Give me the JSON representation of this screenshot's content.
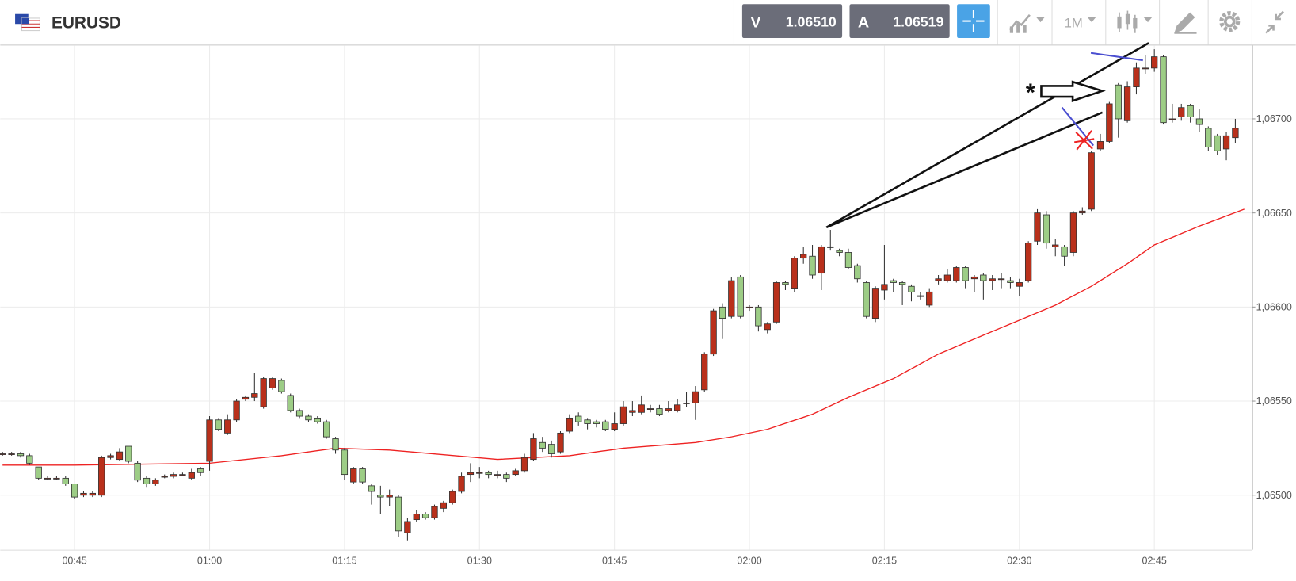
{
  "header": {
    "symbol": "EURUSD",
    "sell_label": "V",
    "sell_price": "1.06510",
    "buy_label": "A",
    "buy_price": "1.06519",
    "timeframe": "1M"
  },
  "chart_data": {
    "type": "candlestick",
    "annotation": "*",
    "up_color": "#b9301b",
    "down_color": "#9dcd86",
    "grid": true,
    "xlim": [
      36.74,
      175.85
    ],
    "xticks": [
      {
        "value": 45,
        "label": "00:45"
      },
      {
        "value": 60,
        "label": "01:00"
      },
      {
        "value": 75,
        "label": "01:15"
      },
      {
        "value": 90,
        "label": "01:30"
      },
      {
        "value": 105,
        "label": "01:45"
      },
      {
        "value": 120,
        "label": "02:00"
      },
      {
        "value": 135,
        "label": "02:15"
      },
      {
        "value": 150,
        "label": "02:30"
      },
      {
        "value": 165,
        "label": "02:45"
      }
    ],
    "ylim": [
      1.06471,
      1.06739
    ],
    "yticks": [
      {
        "value": 1.065,
        "label": "1,06500"
      },
      {
        "value": 1.0655,
        "label": "1,06550"
      },
      {
        "value": 1.066,
        "label": "1,06600"
      },
      {
        "value": 1.0665,
        "label": "1,06650"
      },
      {
        "value": 1.067,
        "label": "1,06700"
      }
    ],
    "x": [
      37,
      38,
      39,
      40,
      41,
      42,
      43,
      44,
      45,
      46,
      47,
      48,
      49,
      50,
      51,
      52,
      53,
      54,
      55,
      56,
      57,
      58,
      59,
      60,
      61,
      62,
      63,
      64,
      65,
      66,
      67,
      68,
      69,
      70,
      71,
      72,
      73,
      74,
      75,
      76,
      77,
      78,
      79,
      80,
      81,
      82,
      83,
      84,
      85,
      86,
      87,
      88,
      89,
      90,
      91,
      92,
      93,
      94,
      95,
      96,
      97,
      98,
      99,
      100,
      101,
      102,
      103,
      104,
      105,
      106,
      107,
      108,
      109,
      110,
      111,
      112,
      113,
      114,
      115,
      116,
      117,
      118,
      119,
      120,
      121,
      122,
      123,
      124,
      125,
      126,
      127,
      128,
      129,
      130,
      131,
      132,
      133,
      134,
      135,
      136,
      137,
      138,
      139,
      140,
      141,
      142,
      143,
      144,
      145,
      146,
      147,
      148,
      149,
      150,
      151,
      152,
      153,
      154,
      155,
      156,
      157,
      158,
      159,
      160,
      161,
      162,
      163,
      164,
      165,
      166,
      167,
      168,
      169,
      170,
      171,
      172,
      173,
      174
    ],
    "open": [
      1.06522,
      1.06522,
      1.06522,
      1.06521,
      1.06515,
      1.06509,
      1.06509,
      1.06509,
      1.06506,
      1.065,
      1.065,
      1.065,
      1.0652,
      1.06519,
      1.06526,
      1.06517,
      1.06509,
      1.06506,
      1.0651,
      1.0651,
      1.06511,
      1.06509,
      1.06514,
      1.06518,
      1.0654,
      1.06533,
      1.0654,
      1.06551,
      1.06552,
      1.06547,
      1.06557,
      1.06561,
      1.06553,
      1.06545,
      1.06542,
      1.06541,
      1.06539,
      1.0653,
      1.06524,
      1.06507,
      1.06514,
      1.06505,
      1.065,
      1.06499,
      1.06499,
      1.0648,
      1.06487,
      1.0649,
      1.06488,
      1.06493,
      1.06496,
      1.06502,
      1.06511,
      1.06512,
      1.06512,
      1.06511,
      1.06511,
      1.06511,
      1.06513,
      1.06519,
      1.06528,
      1.06527,
      1.06523,
      1.06534,
      1.06542,
      1.0654,
      1.06539,
      1.06539,
      1.06535,
      1.06538,
      1.06544,
      1.06544,
      1.06546,
      1.06546,
      1.06545,
      1.06545,
      1.06549,
      1.06549,
      1.06556,
      1.06575,
      1.066,
      1.06595,
      1.06616,
      1.066,
      1.066,
      1.06588,
      1.06592,
      1.06613,
      1.0661,
      1.06626,
      1.06627,
      1.06618,
      1.06632,
      1.0663,
      1.06629,
      1.06622,
      1.06613,
      1.06594,
      1.06609,
      1.06614,
      1.06613,
      1.06611,
      1.06606,
      1.06601,
      1.06614,
      1.06614,
      1.06614,
      1.06621,
      1.06615,
      1.06617,
      1.06614,
      1.06615,
      1.06614,
      1.06611,
      1.06614,
      1.06635,
      1.06649,
      1.06632,
      1.06632,
      1.06629,
      1.0665,
      1.06652,
      1.06684,
      1.06688,
      1.06718,
      1.06699,
      1.06717,
      1.06727,
      1.06727,
      1.06733,
      1.067,
      1.06701,
      1.06707,
      1.067,
      1.06695,
      1.06691,
      1.06684,
      1.0669
    ],
    "close": [
      1.06522,
      1.06522,
      1.06521,
      1.06517,
      1.06509,
      1.06509,
      1.06509,
      1.06506,
      1.06499,
      1.06501,
      1.06501,
      1.0652,
      1.06521,
      1.06523,
      1.06518,
      1.06508,
      1.06506,
      1.06508,
      1.0651,
      1.06511,
      1.06511,
      1.06512,
      1.06512,
      1.0654,
      1.06535,
      1.0654,
      1.0655,
      1.06552,
      1.06554,
      1.06562,
      1.06562,
      1.06555,
      1.06545,
      1.06542,
      1.0654,
      1.06539,
      1.06531,
      1.06524,
      1.06511,
      1.06514,
      1.06507,
      1.06502,
      1.06499,
      1.065,
      1.06481,
      1.06486,
      1.0649,
      1.06488,
      1.06494,
      1.06496,
      1.06502,
      1.0651,
      1.06512,
      1.06512,
      1.06511,
      1.06511,
      1.06509,
      1.06513,
      1.0652,
      1.0653,
      1.06525,
      1.06522,
      1.06533,
      1.06541,
      1.06539,
      1.06538,
      1.06538,
      1.06535,
      1.06538,
      1.06547,
      1.06545,
      1.06548,
      1.06546,
      1.06543,
      1.06546,
      1.06548,
      1.06549,
      1.06555,
      1.06575,
      1.06598,
      1.06594,
      1.06614,
      1.06595,
      1.066,
      1.0659,
      1.06591,
      1.06613,
      1.06612,
      1.06626,
      1.06628,
      1.06617,
      1.06632,
      1.06632,
      1.06629,
      1.06621,
      1.06615,
      1.06595,
      1.0661,
      1.06612,
      1.06613,
      1.06612,
      1.06608,
      1.06606,
      1.06608,
      1.06615,
      1.06617,
      1.06621,
      1.06614,
      1.06616,
      1.06614,
      1.06615,
      1.06615,
      1.06613,
      1.06613,
      1.06634,
      1.0665,
      1.06634,
      1.06633,
      1.06627,
      1.0665,
      1.06651,
      1.06682,
      1.06688,
      1.06708,
      1.067,
      1.06717,
      1.06727,
      1.06727,
      1.06733,
      1.06698,
      1.067,
      1.06706,
      1.06701,
      1.06697,
      1.06685,
      1.06683,
      1.06691,
      1.06695
    ],
    "high": [
      1.06523,
      1.06523,
      1.06523,
      1.06522,
      1.06515,
      1.0651,
      1.0651,
      1.0651,
      1.06506,
      1.06502,
      1.06502,
      1.06521,
      1.06522,
      1.06525,
      1.06526,
      1.06518,
      1.0651,
      1.06509,
      1.06511,
      1.06512,
      1.06512,
      1.06514,
      1.06515,
      1.06542,
      1.06541,
      1.06543,
      1.06551,
      1.06553,
      1.06565,
      1.06563,
      1.06563,
      1.06562,
      1.06554,
      1.06546,
      1.06543,
      1.06542,
      1.0654,
      1.06531,
      1.06525,
      1.06515,
      1.06515,
      1.06506,
      1.06505,
      1.06503,
      1.065,
      1.06488,
      1.06492,
      1.06491,
      1.06495,
      1.06497,
      1.06503,
      1.06512,
      1.06517,
      1.06515,
      1.06513,
      1.06513,
      1.06512,
      1.06514,
      1.06522,
      1.06533,
      1.06531,
      1.06529,
      1.06534,
      1.06543,
      1.06544,
      1.06541,
      1.0654,
      1.0654,
      1.06544,
      1.0655,
      1.0655,
      1.06553,
      1.06548,
      1.06548,
      1.0655,
      1.06551,
      1.06555,
      1.06558,
      1.06576,
      1.06599,
      1.06602,
      1.06616,
      1.06617,
      1.06601,
      1.06601,
      1.06592,
      1.06614,
      1.06614,
      1.06627,
      1.06632,
      1.06633,
      1.06633,
      1.06641,
      1.06631,
      1.06631,
      1.06623,
      1.06614,
      1.06611,
      1.06633,
      1.06615,
      1.06614,
      1.06612,
      1.06608,
      1.0661,
      1.06617,
      1.0662,
      1.06622,
      1.06622,
      1.06617,
      1.06618,
      1.06617,
      1.06618,
      1.06616,
      1.06615,
      1.06635,
      1.06652,
      1.06651,
      1.06636,
      1.06633,
      1.06651,
      1.06653,
      1.06683,
      1.06692,
      1.06709,
      1.06719,
      1.0672,
      1.0673,
      1.06734,
      1.06737,
      1.06734,
      1.06708,
      1.06708,
      1.06708,
      1.06705,
      1.06696,
      1.06692,
      1.06693,
      1.067
    ],
    "low": [
      1.06521,
      1.06521,
      1.0652,
      1.06516,
      1.06508,
      1.06508,
      1.06508,
      1.06505,
      1.06498,
      1.06499,
      1.06499,
      1.06499,
      1.06519,
      1.06518,
      1.06517,
      1.06507,
      1.06504,
      1.06505,
      1.06509,
      1.06509,
      1.0651,
      1.06508,
      1.0651,
      1.06513,
      1.06534,
      1.06532,
      1.06539,
      1.0655,
      1.0655,
      1.06546,
      1.06556,
      1.06554,
      1.06544,
      1.06541,
      1.06539,
      1.06538,
      1.0653,
      1.06522,
      1.06508,
      1.06506,
      1.06506,
      1.06495,
      1.0649,
      1.06494,
      1.06478,
      1.06476,
      1.06486,
      1.06487,
      1.06487,
      1.06491,
      1.06495,
      1.06501,
      1.06507,
      1.06509,
      1.06509,
      1.06509,
      1.06507,
      1.0651,
      1.06512,
      1.06518,
      1.06523,
      1.0652,
      1.06522,
      1.06533,
      1.06537,
      1.06535,
      1.06536,
      1.06534,
      1.06534,
      1.06537,
      1.06542,
      1.06543,
      1.06544,
      1.06542,
      1.06544,
      1.06544,
      1.06547,
      1.0654,
      1.06555,
      1.06574,
      1.06583,
      1.06594,
      1.06594,
      1.06598,
      1.06587,
      1.06586,
      1.06591,
      1.06609,
      1.06608,
      1.06623,
      1.06615,
      1.06609,
      1.0663,
      1.06627,
      1.0662,
      1.06613,
      1.06594,
      1.06592,
      1.06604,
      1.06608,
      1.06601,
      1.06603,
      1.06604,
      1.066,
      1.06612,
      1.06613,
      1.06613,
      1.0661,
      1.06608,
      1.06604,
      1.06609,
      1.0661,
      1.0661,
      1.06606,
      1.06613,
      1.06633,
      1.06631,
      1.06627,
      1.06622,
      1.06627,
      1.06649,
      1.06651,
      1.06683,
      1.06687,
      1.0669,
      1.06698,
      1.06713,
      1.06724,
      1.06725,
      1.06697,
      1.06698,
      1.06699,
      1.06698,
      1.06693,
      1.06683,
      1.06681,
      1.06678,
      1.06687
    ],
    "moving_average": {
      "color": "#ee2222",
      "x": [
        37,
        45,
        60,
        68,
        74,
        80,
        92,
        100,
        106,
        114,
        118,
        122,
        127,
        131,
        136,
        141,
        146,
        150,
        154,
        158,
        162,
        165,
        170,
        175
      ],
      "values": [
        1.06516,
        1.06516,
        1.06517,
        1.06521,
        1.06525,
        1.06524,
        1.06519,
        1.06521,
        1.06525,
        1.06528,
        1.06531,
        1.06535,
        1.06543,
        1.06552,
        1.06562,
        1.06575,
        1.06585,
        1.06593,
        1.06601,
        1.06611,
        1.06623,
        1.06633,
        1.06643,
        1.06652
      ]
    }
  }
}
